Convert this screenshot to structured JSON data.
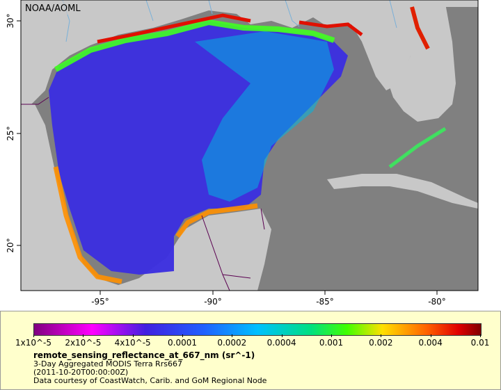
{
  "map": {
    "watermark": "NOAA/AOML",
    "lon_labels": [
      "-95°",
      "-90°",
      "-85°",
      "-80°"
    ],
    "lat_labels": [
      "30°",
      "25°",
      "20°"
    ],
    "colors": {
      "land": "#c8c8c8",
      "no_data": "#808080",
      "border": "#5a0050",
      "river": "#7ab0d8"
    }
  },
  "legend": {
    "colorbar_labels": [
      "1x10^-5",
      "2x10^-5",
      "4x10^-5",
      "0.0001",
      "0.0002",
      "0.0004",
      "0.001",
      "0.002",
      "0.004",
      "0.01"
    ],
    "variable": "remote_sensing_reflectance_at_667_nm (sr^-1)",
    "description": "3-Day Aggregated MODIS Terra Rrs667",
    "date": "(2011-10-20T00:00:00Z)",
    "credit": "Data courtesy of CoastWatch, Carib. and GoM Regional Node"
  }
}
